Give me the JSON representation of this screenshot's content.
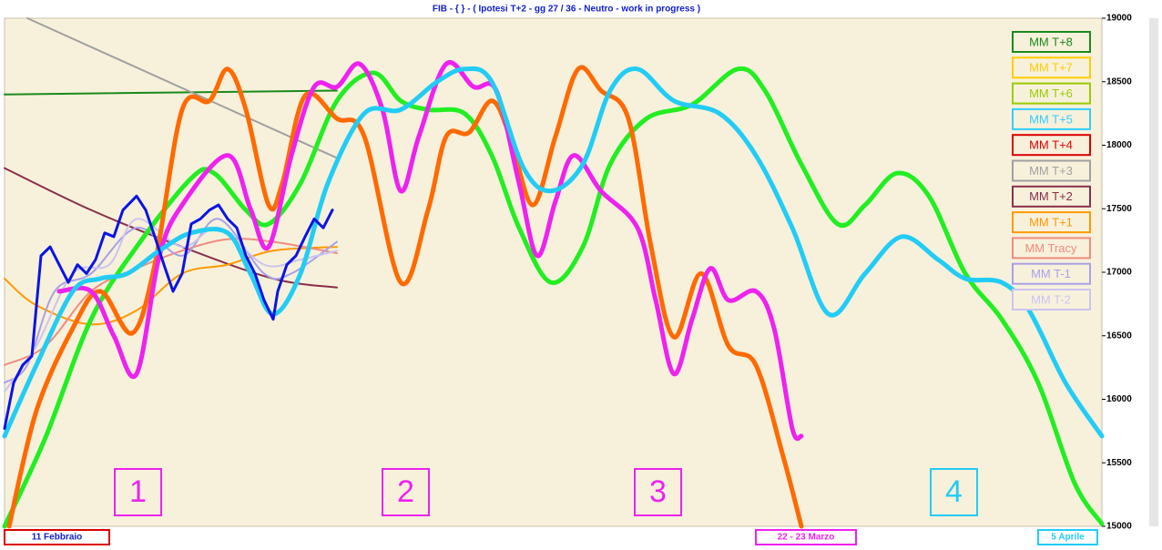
{
  "chart_data": {
    "type": "line",
    "title": "FIB  - { } - ( Ipotesi T+2 - gg 27 / 36 - Neutro - work in progress )",
    "xlim": [
      0,
      241
    ],
    "ylim": [
      15000,
      19000
    ],
    "yticks": [
      15000,
      15500,
      16000,
      16500,
      17000,
      17500,
      18000,
      18500,
      19000
    ],
    "legend": "upper right",
    "series": [
      {
        "name": "MM  T+8",
        "color": "#1a8a1a",
        "x": [
          0,
          73
        ],
        "values": [
          18400,
          18430
        ]
      },
      {
        "name": "MM  T+7",
        "color": "#ffcc00",
        "x": [],
        "values": []
      },
      {
        "name": "MM  T+6",
        "color": "#99cc00",
        "x": [],
        "values": []
      },
      {
        "name": "MM  T+5",
        "color": "#33ccff",
        "x": [],
        "values": []
      },
      {
        "name": "MM  T+4",
        "color": "#dd0000",
        "x": [],
        "values": []
      },
      {
        "name": "MM  T+3",
        "color": "#a0a0a0",
        "x": [
          5,
          73
        ],
        "values": [
          19000,
          17900
        ]
      },
      {
        "name": "MM  T+2",
        "color": "#8b2e4a",
        "x": [
          0,
          19,
          39,
          59,
          73
        ],
        "values": [
          17820,
          17490,
          17200,
          16950,
          16880
        ]
      },
      {
        "name": "MM  T+1",
        "color": "#ff9900",
        "x": [
          0,
          7,
          19,
          29,
          39,
          49,
          59,
          73
        ],
        "values": [
          16950,
          16740,
          16590,
          16700,
          16990,
          17060,
          17170,
          17200
        ]
      },
      {
        "name": "MM Tracy",
        "color": "#f08c80",
        "x": [
          0,
          9,
          19,
          29,
          39,
          49,
          59,
          73
        ],
        "values": [
          16270,
          16420,
          16850,
          17030,
          17170,
          17260,
          17240,
          17150
        ]
      },
      {
        "name": "MM  T-1",
        "color": "#a8a0e8",
        "x": [
          0,
          5,
          11,
          19,
          29,
          39,
          47,
          57,
          63,
          73
        ],
        "values": [
          16130,
          16270,
          16850,
          16990,
          17350,
          17130,
          17420,
          16990,
          16990,
          17240
        ]
      },
      {
        "name": "MM  T-2",
        "color": "#cbc4f0",
        "x": [
          0,
          7,
          15,
          23,
          29,
          39,
          47,
          57,
          65,
          73
        ],
        "values": [
          16060,
          16420,
          16990,
          17060,
          17420,
          17200,
          17350,
          17060,
          17100,
          17170
        ]
      }
    ],
    "price": {
      "color": "#0a14e6",
      "x": [
        0,
        2,
        4,
        6,
        8,
        10,
        12,
        14,
        16,
        18,
        20,
        22,
        24,
        26,
        29,
        31,
        33,
        35,
        37,
        39,
        41,
        43,
        45,
        47,
        49,
        51,
        53,
        55,
        57,
        59,
        60,
        62,
        64,
        66,
        68,
        70,
        72
      ],
      "values": [
        15770,
        16130,
        16270,
        16340,
        17130,
        17200,
        17060,
        16920,
        17060,
        16990,
        17100,
        17310,
        17280,
        17490,
        17600,
        17490,
        17280,
        17060,
        16850,
        16990,
        17380,
        17420,
        17490,
        17530,
        17420,
        17350,
        17130,
        16990,
        16780,
        16630,
        16850,
        17060,
        17130,
        17280,
        17420,
        17350,
        17490
      ]
    },
    "projections": [
      {
        "color": "#22ee22",
        "x": [
          0,
          9,
          19,
          29,
          41,
          46,
          53,
          58,
          65,
          73,
          81,
          87,
          93,
          101,
          107,
          113,
          120,
          127,
          133,
          141,
          151,
          161,
          167,
          175,
          183,
          189,
          196,
          203,
          211,
          219,
          227,
          235,
          241
        ],
        "values": [
          15000,
          15700,
          16630,
          17200,
          17740,
          17780,
          17490,
          17380,
          17700,
          18350,
          18570,
          18350,
          18280,
          18250,
          17920,
          17350,
          16920,
          17200,
          17850,
          18210,
          18320,
          18600,
          18430,
          17850,
          17380,
          17530,
          17780,
          17600,
          16990,
          16630,
          16130,
          15340,
          15020
        ]
      },
      {
        "color": "#ff6a00",
        "x": [
          1,
          7,
          15,
          21,
          28,
          33,
          39,
          45,
          49,
          53,
          58,
          61,
          66,
          73,
          79,
          87,
          93,
          97,
          102,
          107,
          111,
          116,
          121,
          126,
          131,
          137,
          142,
          147,
          153,
          159,
          165,
          171,
          175
        ],
        "values": [
          15000,
          15910,
          16560,
          16850,
          16520,
          17060,
          18280,
          18350,
          18600,
          18280,
          17530,
          17700,
          18390,
          18210,
          18070,
          16920,
          17490,
          18070,
          18100,
          18350,
          18070,
          17530,
          18070,
          18600,
          18430,
          18210,
          17200,
          16490,
          16990,
          16420,
          16270,
          15550,
          15000
        ]
      },
      {
        "color": "#ee22ee",
        "x": [
          12,
          19,
          24,
          29,
          34,
          39,
          49,
          54,
          58,
          63,
          68,
          73,
          78,
          83,
          87,
          91,
          97,
          103,
          108,
          113,
          117,
          121,
          125,
          131,
          139,
          143,
          147,
          151,
          155,
          159,
          165,
          169,
          173,
          175
        ],
        "values": [
          16850,
          16850,
          16500,
          16200,
          17130,
          17530,
          17920,
          17500,
          17200,
          17920,
          18460,
          18460,
          18640,
          18280,
          17640,
          18070,
          18640,
          18460,
          18430,
          17700,
          17130,
          17560,
          17920,
          17640,
          17350,
          16780,
          16200,
          16630,
          17030,
          16780,
          16850,
          16560,
          15770,
          15710
        ]
      },
      {
        "color": "#22ccf5",
        "x": [
          0,
          7,
          15,
          21,
          27,
          34,
          41,
          49,
          54,
          59,
          65,
          71,
          79,
          87,
          95,
          101,
          107,
          114,
          120,
          127,
          133,
          139,
          147,
          157,
          165,
          173,
          181,
          189,
          197,
          205,
          211,
          219,
          225,
          233,
          241
        ],
        "values": [
          15710,
          16270,
          16850,
          16950,
          16990,
          17170,
          17310,
          17310,
          16990,
          16670,
          16990,
          17700,
          18250,
          18280,
          18500,
          18600,
          18500,
          17820,
          17640,
          17850,
          18430,
          18600,
          18350,
          18250,
          17920,
          17350,
          16670,
          16990,
          17280,
          17100,
          16950,
          16920,
          16700,
          16130,
          15710
        ]
      }
    ],
    "zones": [
      {
        "label": "1",
        "color": "#ee22ee"
      },
      {
        "label": "2",
        "color": "#ee22ee"
      },
      {
        "label": "3",
        "color": "#ee22ee"
      },
      {
        "label": "4",
        "color": "#22ccf5"
      }
    ],
    "dates": [
      {
        "label": "11  Febbraio",
        "color": "#dd0000"
      },
      {
        "label": "22 - 23  Marzo",
        "color": "#ee22ee"
      },
      {
        "label": "5  Aprile",
        "color": "#22ccf5"
      }
    ]
  }
}
